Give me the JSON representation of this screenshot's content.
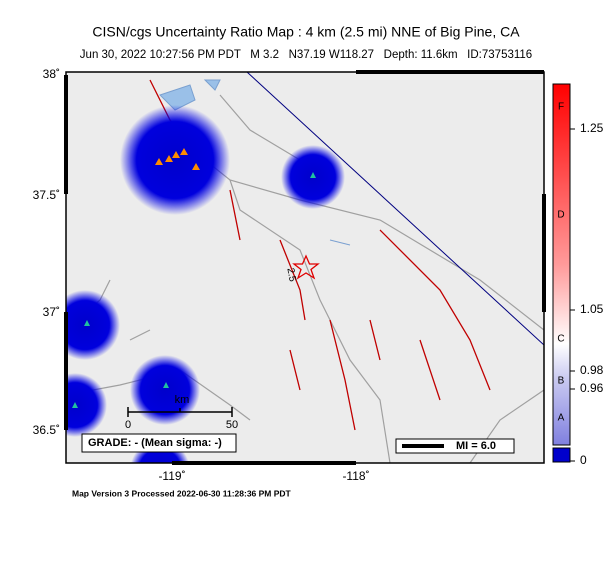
{
  "header": {
    "title": "CISN/cgs Uncertainty Ratio Map : 4 km (2.5 mi) NNE of Big Pine, CA",
    "subtitle": "Jun 30, 2022 10:27:56 PM PDT   M 3.2   N37.19 W118.27   Depth: 11.6km   ID:73753116"
  },
  "map": {
    "lat_labels": [
      "38˚",
      "37.5˚",
      "37˚",
      "36.5˚"
    ],
    "lon_labels": [
      "-119˚",
      "-118˚"
    ],
    "contour_label": "2.5",
    "scale": {
      "start": "0",
      "end": "50",
      "unit": "km"
    },
    "grade": "GRADE: - (Mean sigma: -)",
    "magnitude_legend": "MI = 6.0"
  },
  "colorbar": {
    "labels": [
      "1.25",
      "1.05",
      "0.98",
      "0.96",
      "0"
    ],
    "grades": [
      "F",
      "D",
      "C",
      "B",
      "A"
    ]
  },
  "footer": "Map Version 3 Processed 2022-06-30 11:28:36 PM PDT"
}
